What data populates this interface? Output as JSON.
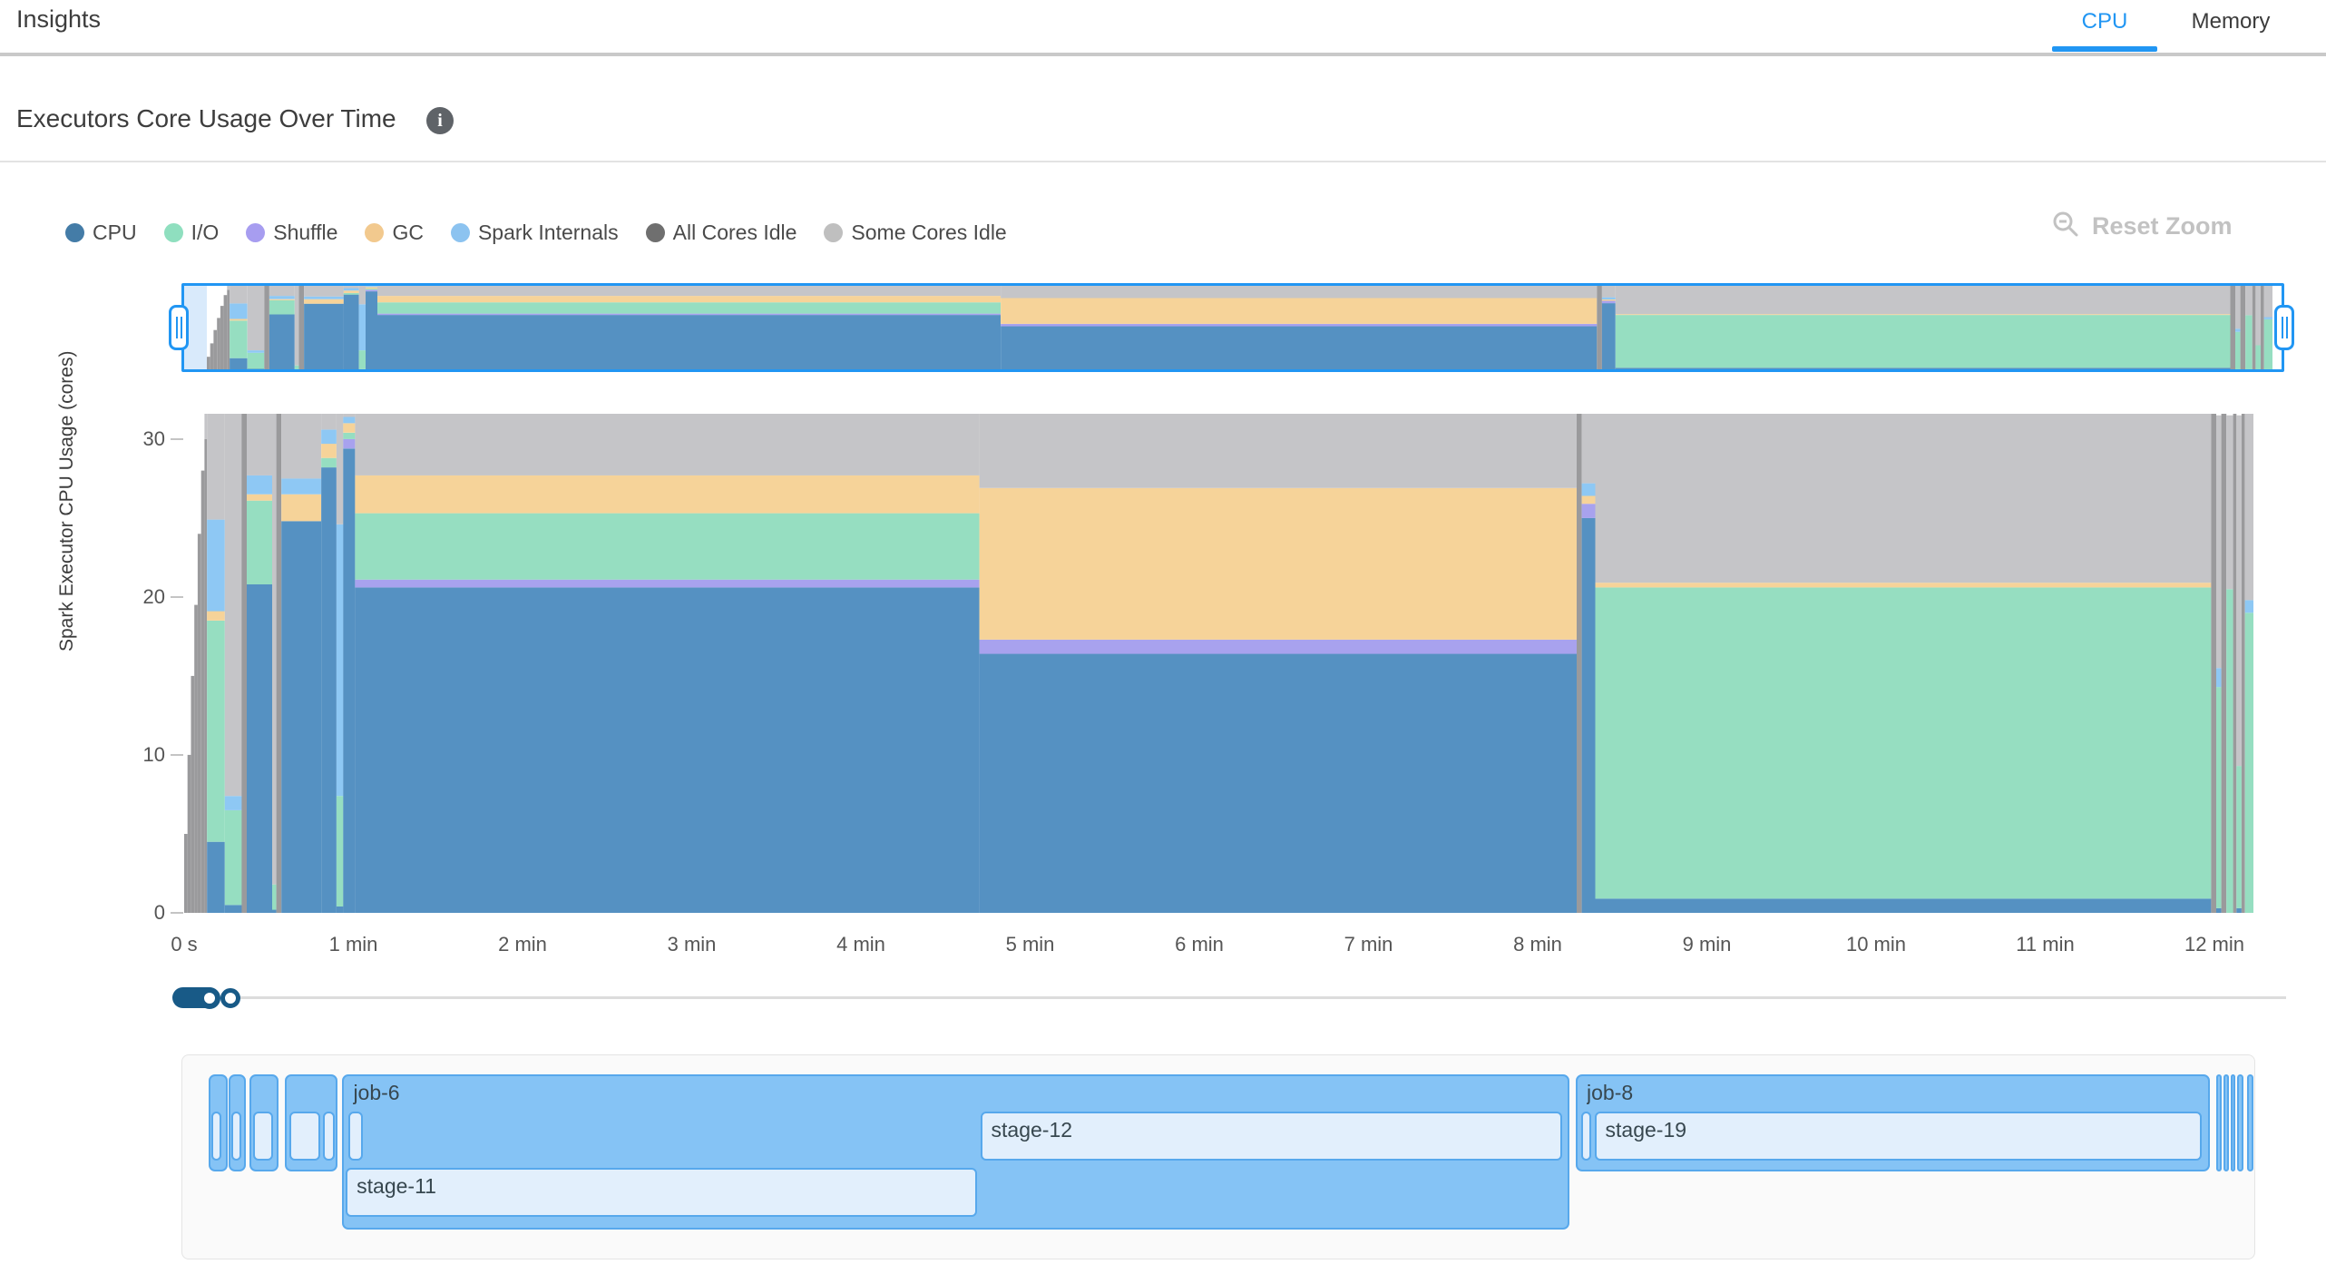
{
  "header": {
    "title": "Insights",
    "tabs": [
      {
        "label": "CPU",
        "active": true,
        "accent": "#2196f3"
      },
      {
        "label": "Memory",
        "active": false
      }
    ]
  },
  "section": {
    "title": "Executors Core Usage Over Time",
    "info_icon": "i"
  },
  "toolbar": {
    "reset_zoom_label": "Reset Zoom"
  },
  "legend": [
    {
      "key": "cpu",
      "label": "CPU",
      "color": "#447ca7"
    },
    {
      "key": "io",
      "label": "I/O",
      "color": "#8fdfbf"
    },
    {
      "key": "shuffle",
      "label": "Shuffle",
      "color": "#a79df0"
    },
    {
      "key": "gc",
      "label": "GC",
      "color": "#f2c98e"
    },
    {
      "key": "internals",
      "label": "Spark Internals",
      "color": "#8cc3f0"
    },
    {
      "key": "all_idle",
      "label": "All Cores Idle",
      "color": "#6f6f6f"
    },
    {
      "key": "some_idle",
      "label": "Some Cores Idle",
      "color": "#bfbfbf"
    }
  ],
  "chart_data": {
    "type": "area",
    "stacked": true,
    "title": "Executors Core Usage Over Time",
    "ylabel": "Spark Executor CPU Usage (cores)",
    "xlabel": "",
    "x_ticks": [
      "0 s",
      "1 min",
      "2 min",
      "3 min",
      "4 min",
      "5 min",
      "6 min",
      "7 min",
      "8 min",
      "9 min",
      "10 min",
      "11 min",
      "12 min"
    ],
    "y_ticks": [
      0,
      10,
      20,
      30
    ],
    "ylim": [
      0,
      32
    ],
    "xlim_minutes": [
      0,
      12.23
    ],
    "legend_position": "top-left",
    "grid": false,
    "series_order": [
      "cpu",
      "shuffle",
      "io",
      "gc",
      "internals",
      "all_idle",
      "some_idle"
    ],
    "series_labels": {
      "cpu": "CPU",
      "shuffle": "Shuffle",
      "io": "I/O",
      "gc": "GC",
      "internals": "Spark Internals",
      "all_idle": "All Cores Idle",
      "some_idle": "Some Cores Idle"
    },
    "series_colors": {
      "cpu": "#5591c2",
      "shuffle": "#a8a2ee",
      "io": "#96dec1",
      "gc": "#f6d399",
      "internals": "#8ec8f4",
      "all_idle": "#9a9a9c",
      "some_idle": "#c5c5c8"
    },
    "segments": [
      {
        "t0": 0.0,
        "t1": 0.02,
        "v": {
          "all_idle": 5
        }
      },
      {
        "t0": 0.02,
        "t1": 0.04,
        "v": {
          "all_idle": 10
        }
      },
      {
        "t0": 0.04,
        "t1": 0.06,
        "v": {
          "all_idle": 15
        }
      },
      {
        "t0": 0.06,
        "t1": 0.08,
        "v": {
          "all_idle": 19.5
        }
      },
      {
        "t0": 0.08,
        "t1": 0.1,
        "v": {
          "all_idle": 24
        }
      },
      {
        "t0": 0.1,
        "t1": 0.12,
        "v": {
          "all_idle": 28
        }
      },
      {
        "t0": 0.12,
        "t1": 0.135,
        "v": {
          "all_idle": 30,
          "some_idle": 1.6
        }
      },
      {
        "t0": 0.135,
        "t1": 0.24,
        "v": {
          "cpu": 4.5,
          "io": 14,
          "gc": 0.6,
          "internals": 5.8,
          "some_idle": 6.7
        }
      },
      {
        "t0": 0.24,
        "t1": 0.34,
        "v": {
          "cpu": 0.5,
          "io": 6,
          "internals": 0.9,
          "some_idle": 24.2
        }
      },
      {
        "t0": 0.34,
        "t1": 0.37,
        "v": {
          "all_idle": 31.6
        }
      },
      {
        "t0": 0.37,
        "t1": 0.52,
        "v": {
          "cpu": 20.8,
          "io": 5.3,
          "gc": 0.4,
          "internals": 1.2,
          "some_idle": 3.9
        }
      },
      {
        "t0": 0.52,
        "t1": 0.545,
        "v": {
          "cpu": 0.2,
          "io": 1.6,
          "some_idle": 29.8
        }
      },
      {
        "t0": 0.545,
        "t1": 0.575,
        "v": {
          "all_idle": 31.6
        }
      },
      {
        "t0": 0.575,
        "t1": 0.81,
        "v": {
          "cpu": 24.8,
          "gc": 1.7,
          "internals": 1.0,
          "some_idle": 4.1
        }
      },
      {
        "t0": 0.81,
        "t1": 0.9,
        "v": {
          "cpu": 28.2,
          "io": 0.6,
          "gc": 0.9,
          "internals": 0.9,
          "some_idle": 1.0
        }
      },
      {
        "t0": 0.9,
        "t1": 0.94,
        "v": {
          "cpu": 0.4,
          "io": 7,
          "internals": 17.2,
          "some_idle": 7.0
        }
      },
      {
        "t0": 0.94,
        "t1": 1.01,
        "v": {
          "cpu": 29.4,
          "io": 0.4,
          "shuffle": 0.6,
          "gc": 0.6,
          "internals": 0.4,
          "some_idle": 0.2
        }
      },
      {
        "t0": 1.01,
        "t1": 4.7,
        "v": {
          "cpu": 20.6,
          "shuffle": 0.5,
          "io": 4.2,
          "gc": 2.4,
          "some_idle": 3.9
        }
      },
      {
        "t0": 4.7,
        "t1": 8.23,
        "v": {
          "cpu": 16.4,
          "shuffle": 0.9,
          "gc": 9.6,
          "some_idle": 4.7
        }
      },
      {
        "t0": 8.23,
        "t1": 8.26,
        "v": {
          "all_idle": 31.6
        }
      },
      {
        "t0": 8.26,
        "t1": 8.34,
        "v": {
          "cpu": 25.0,
          "shuffle": 0.9,
          "gc": 0.5,
          "internals": 0.8,
          "some_idle": 4.4
        }
      },
      {
        "t0": 8.34,
        "t1": 11.98,
        "v": {
          "cpu": 0.9,
          "io": 19.7,
          "gc": 0.3,
          "some_idle": 10.7
        }
      },
      {
        "t0": 11.98,
        "t1": 12.01,
        "v": {
          "all_idle": 31.6
        }
      },
      {
        "t0": 12.01,
        "t1": 12.04,
        "v": {
          "cpu": 0.3,
          "io": 14,
          "internals": 1.2,
          "some_idle": 16
        }
      },
      {
        "t0": 12.04,
        "t1": 12.07,
        "v": {
          "all_idle": 31.6
        }
      },
      {
        "t0": 12.07,
        "t1": 12.11,
        "v": {
          "io": 20.5,
          "some_idle": 11
        }
      },
      {
        "t0": 12.11,
        "t1": 12.13,
        "v": {
          "all_idle": 31.6
        }
      },
      {
        "t0": 12.13,
        "t1": 12.16,
        "v": {
          "cpu": 0.3,
          "io": 9,
          "some_idle": 22.2
        }
      },
      {
        "t0": 12.16,
        "t1": 12.18,
        "v": {
          "all_idle": 31.6
        }
      },
      {
        "t0": 12.18,
        "t1": 12.23,
        "v": {
          "io": 19,
          "internals": 0.8,
          "some_idle": 11.8
        }
      }
    ]
  },
  "gantt": {
    "jobs": [
      {
        "label": "",
        "t0": 0.14,
        "t1": 0.25,
        "tall": false,
        "stages": [
          {
            "label": "",
            "t0": 0.155,
            "t1": 0.215,
            "row": 1
          }
        ]
      },
      {
        "label": "",
        "t0": 0.26,
        "t1": 0.36,
        "tall": false,
        "stages": [
          {
            "label": "",
            "t0": 0.275,
            "t1": 0.335,
            "row": 1
          }
        ]
      },
      {
        "label": "",
        "t0": 0.38,
        "t1": 0.55,
        "tall": false,
        "stages": [
          {
            "label": "",
            "t0": 0.4,
            "t1": 0.52,
            "row": 1
          }
        ]
      },
      {
        "label": "",
        "t0": 0.59,
        "t1": 0.9,
        "tall": false,
        "stages": [
          {
            "label": "",
            "t0": 0.615,
            "t1": 0.8,
            "row": 1
          },
          {
            "label": "",
            "t0": 0.815,
            "t1": 0.885,
            "row": 1
          }
        ]
      },
      {
        "label": "job-6",
        "t0": 0.93,
        "t1": 8.18,
        "tall": true,
        "stages": [
          {
            "label": "",
            "t0": 0.965,
            "t1": 1.05,
            "row": 1
          },
          {
            "label": "stage-12",
            "t0": 4.7,
            "t1": 8.14,
            "row": 1
          },
          {
            "label": "stage-11",
            "t0": 0.95,
            "t1": 4.68,
            "row": 2
          }
        ]
      },
      {
        "label": "job-8",
        "t0": 8.22,
        "t1": 11.97,
        "tall": false,
        "stages": [
          {
            "label": "",
            "t0": 8.25,
            "t1": 8.31,
            "row": 1
          },
          {
            "label": "stage-19",
            "t0": 8.33,
            "t1": 11.92,
            "row": 1
          }
        ]
      },
      {
        "label": "",
        "t0": 12.005,
        "t1": 12.04,
        "tall": false,
        "stages": []
      },
      {
        "label": "",
        "t0": 12.05,
        "t1": 12.08,
        "tall": false,
        "stages": []
      },
      {
        "label": "",
        "t0": 12.09,
        "t1": 12.12,
        "tall": false,
        "stages": []
      },
      {
        "label": "",
        "t0": 12.13,
        "t1": 12.165,
        "tall": false,
        "stages": []
      },
      {
        "label": "",
        "t0": 12.19,
        "t1": 12.225,
        "tall": false,
        "stages": []
      }
    ]
  }
}
